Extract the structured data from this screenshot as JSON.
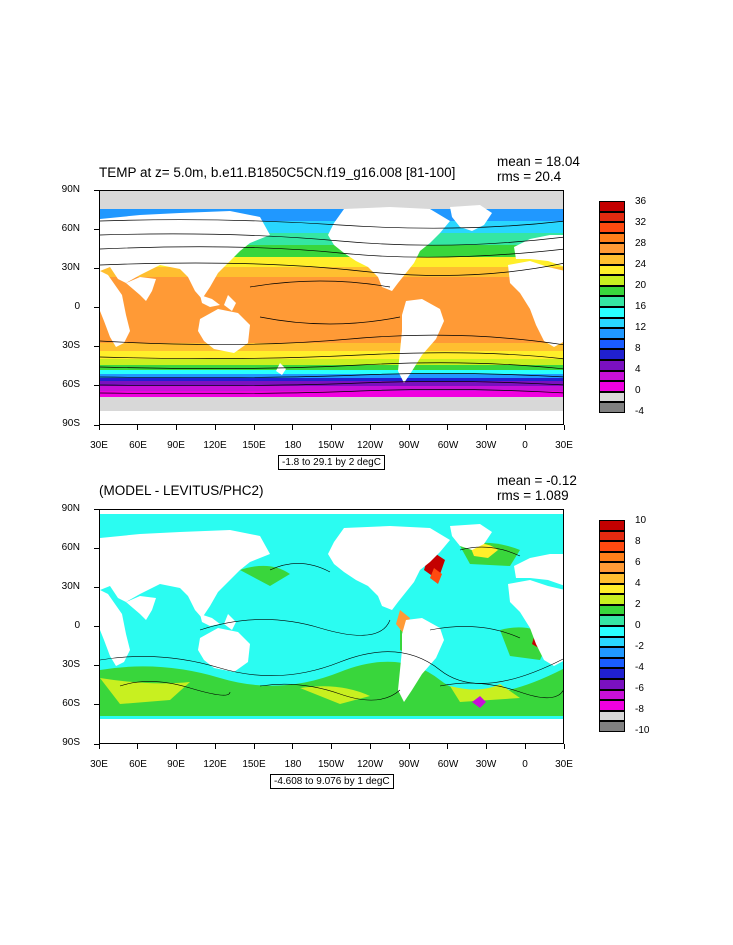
{
  "panels": [
    {
      "title": "TEMP at z=   5.0m, b.e11.B1850C5CN.f19_g16.008 [81-100]",
      "mean": "mean = 18.04",
      "rms": "rms = 20.4",
      "contour_note": "-1.8 to 29.1 by 2 degC",
      "lat_labels": [
        "90N",
        "60N",
        "30N",
        "0",
        "30S",
        "60S",
        "90S"
      ],
      "lon_labels": [
        "30E",
        "60E",
        "90E",
        "120E",
        "150E",
        "180",
        "150W",
        "120W",
        "90W",
        "60W",
        "30W",
        "0",
        "30E"
      ],
      "colorbar_labels": [
        "36",
        "32",
        "28",
        "24",
        "20",
        "16",
        "12",
        "8",
        "4",
        "0",
        "-4"
      ],
      "colorbar_colors": [
        "#c40000",
        "#e32a10",
        "#ff4a10",
        "#ff7f1a",
        "#ff9a36",
        "#ffbf30",
        "#ffef2a",
        "#c8f020",
        "#39d63c",
        "#35e6a3",
        "#29ffff",
        "#29d6ff",
        "#2098ff",
        "#1a5cff",
        "#2020d0",
        "#7a10c0",
        "#c810d8",
        "#f000e0",
        "#d8d8d8",
        "#808080"
      ]
    },
    {
      "title": "(MODEL - LEVITUS/PHC2)",
      "mean": "mean = -0.12",
      "rms": "rms = 1.089",
      "contour_note": "-4.608 to 9.076 by 1 degC",
      "lat_labels": [
        "90N",
        "60N",
        "30N",
        "0",
        "30S",
        "60S",
        "90S"
      ],
      "lon_labels": [
        "30E",
        "60E",
        "90E",
        "120E",
        "150E",
        "180",
        "150W",
        "120W",
        "90W",
        "60W",
        "30W",
        "0",
        "30E"
      ],
      "colorbar_labels": [
        "10",
        "8",
        "6",
        "4",
        "2",
        "0",
        "-2",
        "-4",
        "-6",
        "-8",
        "-10"
      ],
      "colorbar_colors": [
        "#c40000",
        "#e32a10",
        "#ff4a10",
        "#ff7f1a",
        "#ff9a36",
        "#ffbf30",
        "#ffef2a",
        "#c8f020",
        "#39d63c",
        "#35e6a3",
        "#29ffff",
        "#29d6ff",
        "#2098ff",
        "#1a5cff",
        "#2020d0",
        "#7a10c0",
        "#c810d8",
        "#f000e0",
        "#d8d8d8",
        "#808080"
      ]
    }
  ]
}
